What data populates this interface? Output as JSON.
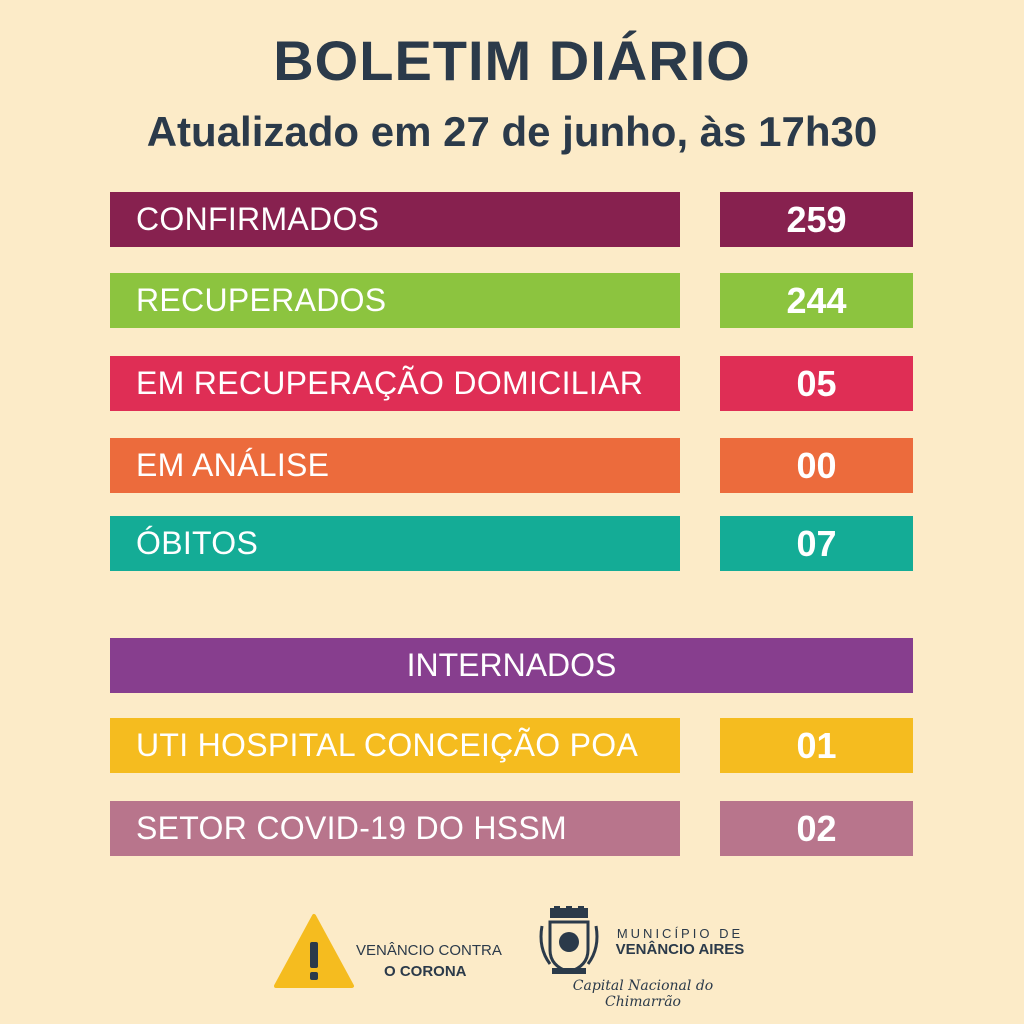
{
  "header": {
    "title": "BOLETIM DIÁRIO",
    "subtitle": "Atualizado em 27 de junho, às 17h30"
  },
  "stats": [
    {
      "label": "CONFIRMADOS",
      "value": "259",
      "color": "#87214f"
    },
    {
      "label": "RECUPERADOS",
      "value": "244",
      "color": "#8cc43f"
    },
    {
      "label": "EM RECUPERAÇÃO DOMICILIAR",
      "value": "05",
      "color": "#df2e55"
    },
    {
      "label": "EM ANÁLISE",
      "value": "00",
      "color": "#ec6b3c"
    },
    {
      "label": "ÓBITOS",
      "value": "07",
      "color": "#14ac96"
    }
  ],
  "internados": {
    "heading": "INTERNADOS",
    "heading_color": "#873e8e",
    "items": [
      {
        "label": "UTI HOSPITAL CONCEIÇÃO POA",
        "value": "01",
        "color": "#f5bc1f"
      },
      {
        "label": "SETOR COVID-19 DO HSSM",
        "value": "02",
        "color": "#b8758c"
      }
    ]
  },
  "footer": {
    "campaign_line1": "VENÂNCIO CONTRA",
    "campaign_line2": "O CORONA",
    "campaign_icon": "warning-triangle-icon",
    "warning_color": "#f5bc1f",
    "municipality_line1": "MUNICÍPIO DE",
    "municipality_line2": "VENÂNCIO AIRES",
    "crest_icon": "municipal-crest-icon",
    "motto": "Capital Nacional do Chimarrão"
  }
}
